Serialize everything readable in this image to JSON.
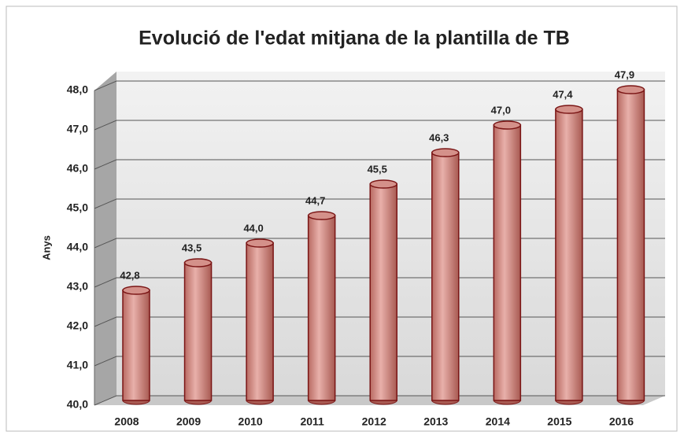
{
  "chart_data": {
    "type": "bar",
    "title": "Evolució de l'edat mitjana de la  plantilla de TB",
    "y_label": "Anys",
    "categories": [
      "2008",
      "2009",
      "2010",
      "2011",
      "2012",
      "2013",
      "2014",
      "2015",
      "2016"
    ],
    "values": [
      42.8,
      43.5,
      44.0,
      44.7,
      45.5,
      46.3,
      47.0,
      47.4,
      47.9
    ],
    "value_labels": [
      "42,8",
      "43,5",
      "44,0",
      "44,7",
      "45,5",
      "46,3",
      "47,0",
      "47,4",
      "47,9"
    ],
    "color": "#d4918a",
    "ylim": [
      40,
      48
    ],
    "yticks": [
      {
        "value": 40,
        "label": "40,0"
      },
      {
        "value": 41,
        "label": "41,0"
      },
      {
        "value": 42,
        "label": "42,0"
      },
      {
        "value": 43,
        "label": "43,0"
      },
      {
        "value": 44,
        "label": "44,0"
      },
      {
        "value": 45,
        "label": "45,0"
      },
      {
        "value": 46,
        "label": "46,0"
      },
      {
        "value": 47,
        "label": "47,0"
      },
      {
        "value": 48,
        "label": "48,0"
      }
    ],
    "grid": true
  }
}
